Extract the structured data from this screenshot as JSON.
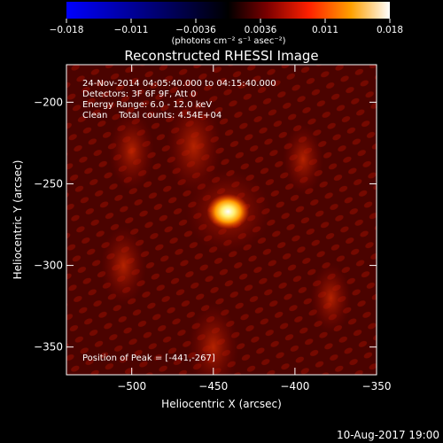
{
  "chart_data": {
    "type": "heatmap",
    "title": "Reconstructed RHESSI Image",
    "xlabel": "Heliocentric X (arcsec)",
    "ylabel": "Heliocentric Y (arcsec)",
    "xlim": [
      -540,
      -350
    ],
    "ylim": [
      -367,
      -177
    ],
    "xticks": [
      -500,
      -450,
      -400,
      -350
    ],
    "yticks": [
      -200,
      -250,
      -300,
      -350
    ],
    "colorbar": {
      "label": "(photons cm⁻² s⁻¹ asec⁻²)",
      "range": [
        -0.018,
        0.018
      ],
      "ticks": [
        "−0.018",
        "−0.011",
        "−0.0036",
        "0.0036",
        "0.011",
        "0.018"
      ],
      "colors": [
        "#0000ff",
        "#000000",
        "#800000",
        "#ff3000",
        "#ffa000",
        "#ffffff"
      ]
    },
    "info_lines": [
      "24-Nov-2014 04:05:40.000 to 04:15:40.000",
      "Detectors: 3F 6F 9F, Att 0",
      "Energy Range: 6.0 - 12.0 keV",
      "Clean    Total counts: 4.54E+04"
    ],
    "peak_label": "Position of Peak = [-441,-267]",
    "peak": {
      "x": -441,
      "y": -267
    },
    "sources": [
      {
        "x": -441,
        "y": -267,
        "value": 0.018
      },
      {
        "x": -462,
        "y": -227,
        "value": 0.006
      },
      {
        "x": -500,
        "y": -230,
        "value": 0.004
      },
      {
        "x": -505,
        "y": -300,
        "value": 0.004
      },
      {
        "x": -450,
        "y": -350,
        "value": 0.005
      },
      {
        "x": -395,
        "y": -235,
        "value": 0.003
      },
      {
        "x": -378,
        "y": -320,
        "value": 0.003
      }
    ]
  },
  "footer": {
    "date": "10-Aug-2017 19:00"
  }
}
